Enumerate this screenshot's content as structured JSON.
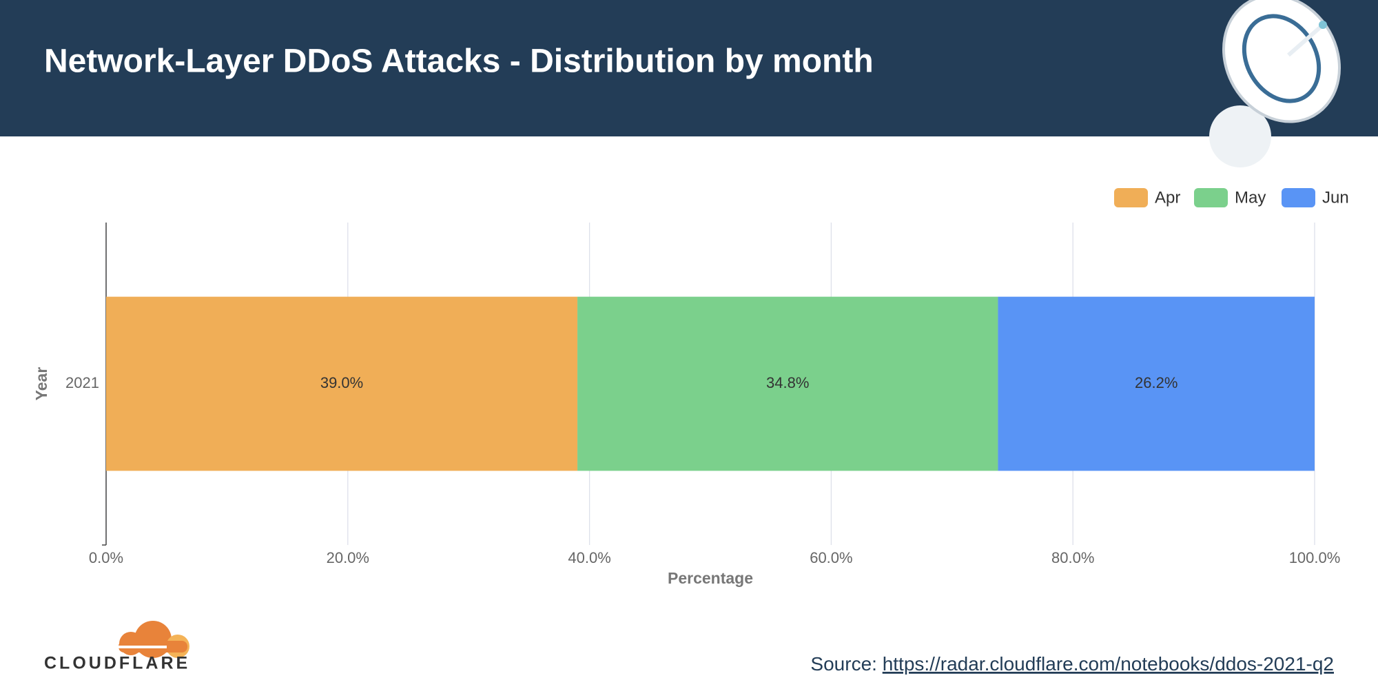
{
  "chart_data": {
    "type": "bar",
    "orientation": "horizontal",
    "stacked": true,
    "title": "Network-Layer DDoS Attacks - Distribution by month",
    "categories": [
      "2021"
    ],
    "series": [
      {
        "name": "Apr",
        "color": "#f0ae57",
        "values": [
          39.0
        ],
        "value_labels": [
          "39.0%"
        ]
      },
      {
        "name": "May",
        "color": "#7bd08c",
        "values": [
          34.8
        ],
        "value_labels": [
          "34.8%"
        ]
      },
      {
        "name": "Jun",
        "color": "#5994f5",
        "values": [
          26.2
        ],
        "value_labels": [
          "26.2%"
        ]
      }
    ],
    "xlim": [
      0,
      100
    ],
    "xticks": [
      {
        "value": 0,
        "label": "0.0%"
      },
      {
        "value": 20,
        "label": "20.0%"
      },
      {
        "value": 40,
        "label": "40.0%"
      },
      {
        "value": 60,
        "label": "60.0%"
      },
      {
        "value": 80,
        "label": "80.0%"
      },
      {
        "value": 100,
        "label": "100.0%"
      }
    ],
    "x_label": "Percentage",
    "y_label": "Year",
    "grid": true,
    "legend": "top-right"
  },
  "footer": {
    "source_label": "Source:",
    "source_url": "https://radar.cloudflare.com/notebooks/ddos-2021-q2",
    "brand": "CLOUDFLARE"
  }
}
